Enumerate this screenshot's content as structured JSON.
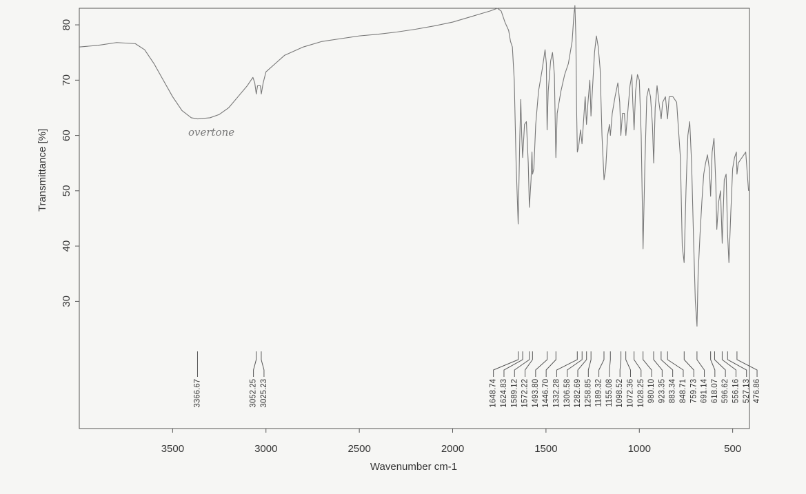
{
  "chart_data": {
    "type": "line",
    "x_label": "Wavenumber cm-1",
    "y_label": "Transmittance [%]",
    "annotation": "overtone",
    "xlim": [
      4000,
      410
    ],
    "ylim": [
      7,
      83
    ],
    "xticks": [
      3500,
      3000,
      2500,
      2000,
      1500,
      1000,
      500
    ],
    "yticks": [
      30,
      40,
      50,
      60,
      70,
      80
    ],
    "color": "#777777",
    "x": [
      4000,
      3900,
      3800,
      3700,
      3650,
      3600,
      3550,
      3500,
      3450,
      3400,
      3366,
      3300,
      3250,
      3200,
      3150,
      3100,
      3070,
      3060,
      3052,
      3045,
      3030,
      3025,
      3015,
      3000,
      2950,
      2900,
      2800,
      2700,
      2600,
      2500,
      2400,
      2300,
      2200,
      2100,
      2000,
      1950,
      1900,
      1850,
      1800,
      1760,
      1740,
      1720,
      1700,
      1690,
      1680,
      1670,
      1660,
      1649,
      1640,
      1635,
      1630,
      1625,
      1615,
      1605,
      1595,
      1589,
      1580,
      1575,
      1572,
      1565,
      1555,
      1540,
      1520,
      1505,
      1498,
      1494,
      1488,
      1475,
      1465,
      1455,
      1447,
      1440,
      1420,
      1400,
      1380,
      1360,
      1350,
      1345,
      1340,
      1336,
      1332,
      1325,
      1315,
      1307,
      1300,
      1290,
      1283,
      1275,
      1265,
      1259,
      1250,
      1240,
      1230,
      1220,
      1210,
      1200,
      1189,
      1180,
      1170,
      1160,
      1155,
      1145,
      1130,
      1115,
      1105,
      1099,
      1090,
      1080,
      1072,
      1065,
      1050,
      1040,
      1035,
      1028,
      1020,
      1010,
      1000,
      990,
      980,
      970,
      960,
      950,
      940,
      930,
      923,
      915,
      905,
      895,
      883,
      875,
      860,
      849,
      840,
      820,
      800,
      780,
      770,
      760,
      750,
      740,
      730,
      720,
      710,
      700,
      691,
      685,
      675,
      665,
      655,
      645,
      635,
      625,
      618,
      610,
      600,
      597,
      590,
      585,
      575,
      565,
      556,
      545,
      535,
      527,
      520,
      510,
      500,
      490,
      480,
      477,
      470,
      430,
      415
    ],
    "values": [
      76,
      76.3,
      76.8,
      76.6,
      75.5,
      73,
      70,
      67,
      64.5,
      63.2,
      63,
      63.2,
      63.8,
      65,
      67,
      69,
      70.5,
      69.5,
      67.5,
      69,
      69,
      67.5,
      69.5,
      71.5,
      73,
      74.5,
      76,
      77,
      77.5,
      78,
      78.3,
      78.7,
      79.2,
      79.8,
      80.5,
      81,
      81.5,
      82,
      82.5,
      83,
      82.5,
      80.5,
      79,
      77,
      76,
      70,
      55,
      44,
      60,
      66.5,
      60,
      56,
      62,
      62.5,
      55,
      47,
      52,
      57,
      53,
      54,
      62,
      68,
      72,
      75.5,
      73,
      61,
      68,
      73.5,
      75,
      71,
      56,
      64,
      68,
      71,
      73,
      77,
      82,
      83.5,
      78,
      65,
      57,
      58,
      61,
      58.5,
      62,
      67,
      62,
      66,
      70,
      63.5,
      69,
      75,
      78,
      76,
      72,
      60,
      52,
      54,
      60,
      62,
      60,
      64,
      67,
      69.5,
      66,
      60,
      64,
      64,
      60,
      63,
      69,
      71,
      66,
      61,
      68,
      71,
      70,
      60,
      39.5,
      55,
      67,
      68.5,
      67,
      62,
      55,
      65,
      69,
      66,
      63,
      66,
      67,
      63,
      67,
      67,
      66,
      56,
      40,
      37,
      50,
      60,
      62.5,
      55,
      42,
      30,
      25.5,
      35,
      42,
      48,
      53,
      55,
      56.5,
      54,
      49,
      57,
      59.5,
      57,
      51,
      43,
      48,
      50,
      40.5,
      52,
      53,
      42,
      37,
      46,
      54,
      56,
      57,
      53,
      55,
      57,
      50
    ],
    "peaks": [
      3366.67,
      3052.25,
      3025.23,
      1648.74,
      1624.83,
      1589.12,
      1572.22,
      {
        "value": 1493.8,
        "label": "1493.80"
      },
      {
        "value": 1446.7,
        "label": "1446.70"
      },
      1332.28,
      1306.58,
      1282.69,
      1258.85,
      1189.32,
      1155.08,
      1098.52,
      1072.36,
      1028.25,
      {
        "value": 980.1,
        "label": "980.10"
      },
      923.35,
      883.34,
      848.71,
      759.73,
      691.14,
      618.07,
      596.62,
      556.16,
      527.13,
      476.86
    ]
  }
}
